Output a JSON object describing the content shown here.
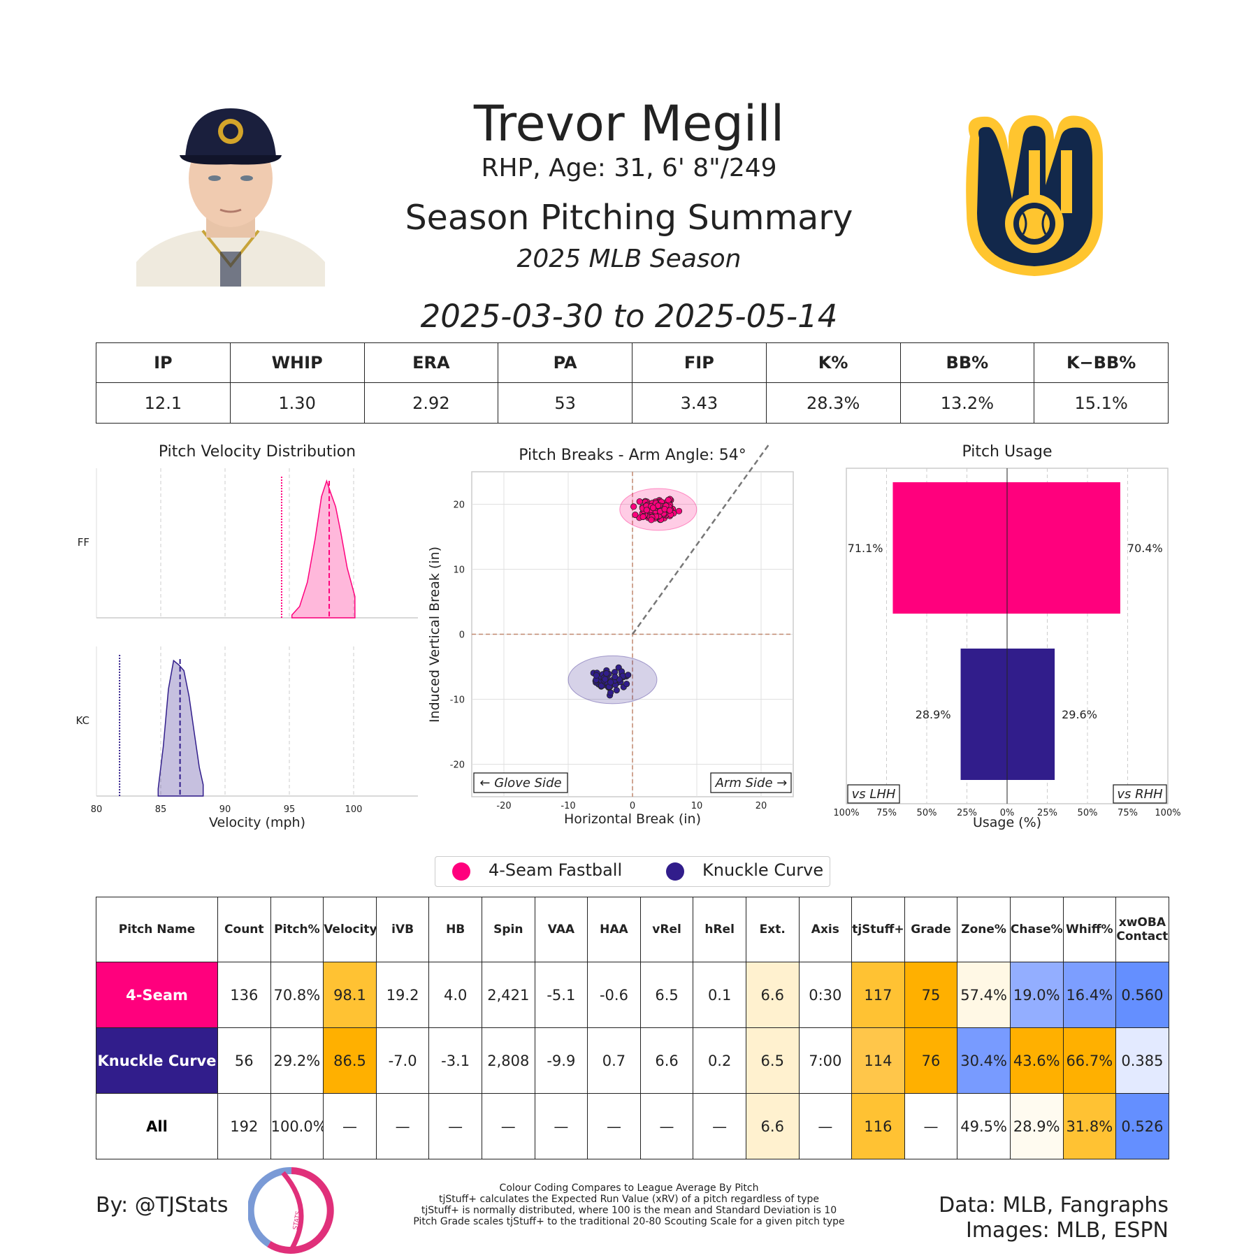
{
  "header": {
    "name": "Trevor Megill",
    "info": "RHP, Age: 31, 6' 8\"/249",
    "summary_title": "Season Pitching Summary",
    "season": "2025 MLB Season",
    "date_range": "2025-03-30 to 2025-05-14"
  },
  "stats": {
    "headers": [
      "IP",
      "WHIP",
      "ERA",
      "PA",
      "FIP",
      "K%",
      "BB%",
      "K−BB%"
    ],
    "values": [
      "12.1",
      "1.30",
      "2.92",
      "53",
      "3.43",
      "28.3%",
      "13.2%",
      "15.1%"
    ]
  },
  "colors": {
    "ff": "#FF007D",
    "kc": "#311D8B"
  },
  "chart_data": [
    {
      "type": "area",
      "title": "Pitch Velocity Distribution",
      "xlabel": "Velocity (mph)",
      "xlim": [
        80,
        105
      ],
      "xticks": [
        "80",
        "85",
        "90",
        "95",
        "100"
      ],
      "series": [
        {
          "name": "FF",
          "mean": 98.1,
          "league_avg": 94.4,
          "x": [
            95.2,
            95.8,
            96.4,
            97.0,
            97.5,
            97.9,
            98.2,
            98.6,
            99.0,
            99.5,
            100.1
          ],
          "density": [
            0.02,
            0.08,
            0.25,
            0.55,
            0.85,
            0.96,
            0.88,
            0.78,
            0.6,
            0.35,
            0.15
          ]
        },
        {
          "name": "KC",
          "mean": 86.5,
          "league_avg": 81.8,
          "x": [
            84.8,
            85.2,
            85.6,
            86.0,
            86.4,
            86.8,
            87.2,
            87.6,
            88.0,
            88.3
          ],
          "density": [
            0.05,
            0.35,
            0.75,
            0.95,
            0.92,
            0.88,
            0.7,
            0.45,
            0.2,
            0.08
          ]
        }
      ]
    },
    {
      "type": "scatter",
      "title": "Pitch Breaks - Arm Angle: 54°",
      "xlabel": "Horizontal Break (in)",
      "ylabel": "Induced Vertical Break (in)",
      "xlim": [
        -25,
        25
      ],
      "ylim": [
        -25,
        25
      ],
      "xticks": [
        "-20",
        "-10",
        "0",
        "10",
        "20"
      ],
      "yticks": [
        "20",
        "10",
        "0",
        "-10",
        "-20"
      ],
      "annotations": [
        "← Glove Side",
        "Arm Side →"
      ],
      "arm_angle_deg": 54,
      "series": [
        {
          "name": "4-Seam Fastball",
          "center": [
            4.0,
            19.2
          ],
          "spread": [
            2.6,
            1.4
          ],
          "count": 136
        },
        {
          "name": "Knuckle Curve",
          "center": [
            -3.1,
            -7.0
          ],
          "spread": [
            3.0,
            1.6
          ],
          "count": 56
        }
      ]
    },
    {
      "type": "bar",
      "title": "Pitch Usage",
      "xlabel": "Usage (%)",
      "xticks": [
        "100%",
        "75%",
        "50%",
        "25%",
        "0%",
        "25%",
        "50%",
        "75%",
        "100%"
      ],
      "side_labels": [
        "vs LHH",
        "vs RHH"
      ],
      "categories": [
        "4-Seam Fastball",
        "Knuckle Curve"
      ],
      "series": [
        {
          "name": "vs LHH",
          "values": [
            71.1,
            28.9
          ],
          "labels": [
            "71.1%",
            "28.9%"
          ]
        },
        {
          "name": "vs RHH",
          "values": [
            70.4,
            29.6
          ],
          "labels": [
            "70.4%",
            "29.6%"
          ]
        }
      ]
    }
  ],
  "legend": [
    "4-Seam Fastball",
    "Knuckle Curve"
  ],
  "pitch_table": {
    "headers": [
      "Pitch Name",
      "Count",
      "Pitch%",
      "Velocity",
      "iVB",
      "HB",
      "Spin",
      "VAA",
      "HAA",
      "vRel",
      "hRel",
      "Ext.",
      "Axis",
      "tjStuff+",
      "Grade",
      "Zone%",
      "Chase%",
      "Whiff%",
      "xwOBA Contact"
    ],
    "rows": [
      {
        "name": "4-Seam",
        "bg": "#FF007D",
        "cells": [
          "136",
          "70.8%",
          "98.1",
          "19.2",
          "4.0",
          "2,421",
          "-5.1",
          "-0.6",
          "6.5",
          "0.1",
          "6.6",
          "0:30",
          "117",
          "75",
          "57.4%",
          "19.0%",
          "16.4%",
          "0.560"
        ],
        "shade": [
          "#ffffff",
          "#ffffff",
          "#FFC233",
          "#ffffff",
          "#ffffff",
          "#ffffff",
          "#ffffff",
          "#ffffff",
          "#ffffff",
          "#ffffff",
          "#FFF1CF",
          "#ffffff",
          "#FFC233",
          "#FFB000",
          "#FFF8E5",
          "#93AEFF",
          "#7C9EFF",
          "#648FFF"
        ]
      },
      {
        "name": "Knuckle Curve",
        "bg": "#311D8B",
        "cells": [
          "56",
          "29.2%",
          "86.5",
          "-7.0",
          "-3.1",
          "2,808",
          "-9.9",
          "0.7",
          "6.6",
          "0.2",
          "6.5",
          "7:00",
          "114",
          "76",
          "30.4%",
          "43.6%",
          "66.7%",
          "0.385"
        ],
        "shade": [
          "#ffffff",
          "#ffffff",
          "#FFB000",
          "#ffffff",
          "#ffffff",
          "#ffffff",
          "#ffffff",
          "#ffffff",
          "#ffffff",
          "#ffffff",
          "#FFF1CF",
          "#ffffff",
          "#FFC64A",
          "#FFB000",
          "#789BFF",
          "#FFB000",
          "#FFB000",
          "#E3EAFF"
        ]
      },
      {
        "name": "All",
        "bg": "#ffffff",
        "cells": [
          "192",
          "100.0%",
          "—",
          "—",
          "—",
          "—",
          "—",
          "—",
          "—",
          "—",
          "6.6",
          "—",
          "116",
          "—",
          "49.5%",
          "28.9%",
          "31.8%",
          "0.526"
        ],
        "shade": [
          "#ffffff",
          "#ffffff",
          "#ffffff",
          "#ffffff",
          "#ffffff",
          "#ffffff",
          "#ffffff",
          "#ffffff",
          "#ffffff",
          "#ffffff",
          "#FFF1CF",
          "#ffffff",
          "#FFC233",
          "#ffffff",
          "#ffffff",
          "#FFFBF0",
          "#FFC233",
          "#648FFF"
        ]
      }
    ]
  },
  "footer": {
    "byline": "By: @TJStats",
    "logo_text": "STATS",
    "data_source": "Data: MLB, Fangraphs",
    "images_source": "Images: MLB, ESPN",
    "notes": [
      "Colour Coding Compares to League Average By Pitch",
      "tjStuff+ calculates the Expected Run Value (xRV) of a pitch regardless of type",
      "tjStuff+ is normally distributed, where 100 is the mean and Standard Deviation is 10",
      "Pitch Grade scales tjStuff+ to the traditional 20-80 Scouting Scale for a given pitch type"
    ]
  }
}
